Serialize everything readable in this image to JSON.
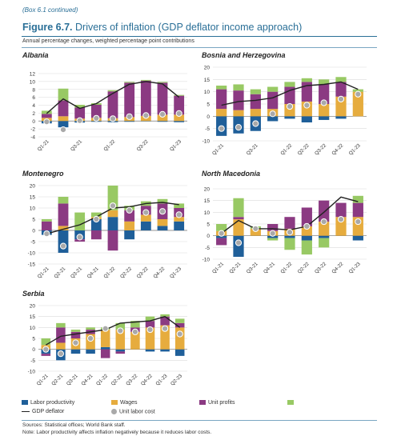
{
  "box_label": "(Box 6.1 continued)",
  "figure": {
    "number": "Figure 6.7.",
    "title": "Drivers of inflation (GDP deflator income approach)",
    "subtitle": "Annual percentage changes, weighted percentage point contributions"
  },
  "colors": {
    "labor_productivity": "#1f5f99",
    "wages": "#e6ac3e",
    "unit_profits": "#8b3a82",
    "unit_net_taxes": "#98c964",
    "gdp_deflator": "#222222",
    "unit_labor_cost": "#a9a9a9"
  },
  "legend": {
    "labor_productivity": "Labor productivity",
    "wages": "Wages",
    "unit_profits": "Unit profits",
    "unit_net_taxes": "Unit net takes",
    "gdp_deflator": "GDP deflator",
    "unit_labor_cost": "Unit labor cost"
  },
  "footer": {
    "sources": "Sources: Statistical offices; World Bank staff.",
    "note": "Note: Labor productivity affects inflation negatively because it reduces labor costs."
  },
  "chart_data": [
    {
      "type": "bar",
      "panel": "Albania",
      "categories": [
        "Q1-21",
        "Q2-21",
        "Q3-21",
        "Q4-21",
        "Q1-22",
        "Q2-22",
        "Q3-22",
        "Q4-22",
        "Q1-23"
      ],
      "tick_labels_shown": [
        "Q1-21",
        "",
        "Q3-21",
        "",
        "Q1-22",
        "",
        "Q3-22",
        "",
        "Q1-23"
      ],
      "ylim": [
        -4,
        12
      ],
      "yticks": [
        -4,
        -2,
        0,
        2,
        4,
        6,
        8,
        10,
        12
      ],
      "series": [
        {
          "name": "Labor productivity",
          "values": [
            -0.6,
            -1.6,
            -0.4,
            -0.2,
            -0.3,
            -0.2,
            -0.1,
            -0.2,
            -0.3
          ]
        },
        {
          "name": "Wages",
          "values": [
            0.8,
            1.2,
            0.6,
            0.8,
            0.7,
            1.0,
            1.3,
            1.6,
            1.6
          ]
        },
        {
          "name": "Unit profits",
          "values": [
            1.0,
            4.0,
            2.8,
            3.3,
            6.8,
            8.7,
            8.9,
            8.1,
            4.8
          ]
        },
        {
          "name": "Unit net takes",
          "values": [
            0.8,
            3.0,
            0.7,
            0.4,
            0.3,
            0.2,
            0.2,
            0.2,
            0.2
          ]
        }
      ],
      "gdp_deflator": [
        1.9,
        5.6,
        3.2,
        4.4,
        7.0,
        9.3,
        10.0,
        9.4,
        6.0
      ],
      "unit_labor_cost": [
        -0.2,
        -2.2,
        0.1,
        0.7,
        0.6,
        1.1,
        1.4,
        1.7,
        1.9
      ]
    },
    {
      "type": "bar",
      "panel": "Bosnia and Herzegovina",
      "categories": [
        "Q1-21",
        "Q2-21",
        "Q3-21",
        "Q4-21",
        "Q1-22",
        "Q2-22",
        "Q3-22",
        "Q4-22",
        "Q1-23"
      ],
      "tick_labels_shown": [
        "Q1-21",
        "",
        "Q3-21",
        "",
        "Q1-22",
        "Q2-22",
        "Q3-22",
        "Q4-22",
        "Q1-23"
      ],
      "ylim": [
        -10,
        20
      ],
      "yticks": [
        -10,
        -5,
        0,
        5,
        10,
        15,
        20
      ],
      "series": [
        {
          "name": "Labor productivity",
          "values": [
            -8.0,
            -7.0,
            -6.0,
            -2.0,
            -1.0,
            -2.5,
            -1.5,
            -1.0,
            0.0
          ]
        },
        {
          "name": "Wages",
          "values": [
            3.0,
            2.5,
            3.0,
            3.0,
            5.0,
            6.0,
            5.0,
            8.0,
            10.0
          ]
        },
        {
          "name": "Unit profits",
          "values": [
            8.0,
            8.0,
            6.0,
            7.0,
            7.0,
            8.0,
            8.0,
            6.0,
            0.0
          ]
        },
        {
          "name": "Unit net takes",
          "values": [
            1.5,
            2.5,
            2.0,
            2.0,
            2.0,
            1.5,
            2.0,
            2.0,
            1.0
          ]
        }
      ],
      "gdp_deflator": [
        4.5,
        6.0,
        6.5,
        7.5,
        10.5,
        12.5,
        13.0,
        14.0,
        11.0
      ],
      "unit_labor_cost": [
        -5.0,
        -4.5,
        -3.0,
        1.0,
        4.0,
        4.5,
        5.5,
        7.0,
        9.0
      ]
    },
    {
      "type": "bar",
      "panel": "Montenegro",
      "categories": [
        "Q1-21",
        "Q2-21",
        "Q3-21",
        "Q4-21",
        "Q1-22",
        "Q2-22",
        "Q3-22",
        "Q4-22",
        "Q1-23"
      ],
      "tick_labels_shown": [
        "Q1-21",
        "Q2-21",
        "Q3-21",
        "Q4-21",
        "Q1-22",
        "Q2-22",
        "Q3-22",
        "Q4-22",
        "Q1-23"
      ],
      "ylim": [
        -15,
        20
      ],
      "yticks": [
        -15,
        -10,
        -5,
        0,
        5,
        10,
        15,
        20
      ],
      "series": [
        {
          "name": "Labor productivity",
          "values": [
            -2.0,
            -10.0,
            -4.0,
            5.0,
            6.0,
            -4.0,
            4.0,
            2.0,
            4.0
          ]
        },
        {
          "name": "Wages",
          "values": [
            0.0,
            2.0,
            0.0,
            1.0,
            3.0,
            4.0,
            3.0,
            3.0,
            2.0
          ]
        },
        {
          "name": "Unit profits",
          "values": [
            4.0,
            10.0,
            -1.0,
            -4.0,
            -9.0,
            5.0,
            4.0,
            7.0,
            4.0
          ]
        },
        {
          "name": "Unit net takes",
          "values": [
            1.0,
            3.0,
            8.0,
            2.0,
            11.0,
            2.0,
            2.0,
            2.0,
            2.0
          ]
        }
      ],
      "gdp_deflator": [
        -1.5,
        0.5,
        2.5,
        6.0,
        10.0,
        10.5,
        12.0,
        12.5,
        11.5
      ],
      "unit_labor_cost": [
        -1.5,
        -7.0,
        -3.0,
        5.0,
        11.0,
        9.0,
        8.0,
        8.5,
        7.0
      ]
    },
    {
      "type": "bar",
      "panel": "North Macedonia",
      "categories": [
        "Q1-21",
        "Q2-21",
        "Q3-21",
        "Q4-21",
        "Q1-22",
        "Q2-22",
        "Q3-22",
        "Q4-22",
        "Q1-23"
      ],
      "tick_labels_shown": [
        "Q1-21",
        "Q2-21",
        "Q3-21",
        "Q4-21",
        "Q1-22",
        "Q2-22",
        "Q3-22",
        "Q4-22",
        "Q1-23"
      ],
      "ylim": [
        -10,
        20
      ],
      "yticks": [
        -10,
        -5,
        0,
        5,
        10,
        15,
        20
      ],
      "series": [
        {
          "name": "Labor productivity",
          "values": [
            -1.0,
            -9.0,
            0.0,
            -1.0,
            -1.0,
            -2.0,
            -1.0,
            0.0,
            -2.0
          ]
        },
        {
          "name": "Wages",
          "values": [
            2.0,
            7.0,
            3.0,
            2.0,
            3.0,
            4.0,
            6.0,
            8.0,
            8.0
          ]
        },
        {
          "name": "Unit profits",
          "values": [
            -3.0,
            1.0,
            0.0,
            3.0,
            5.0,
            8.0,
            9.0,
            6.0,
            6.0
          ]
        },
        {
          "name": "Unit net takes",
          "values": [
            3.0,
            8.0,
            1.0,
            -1.0,
            -5.0,
            -6.0,
            -4.0,
            0.0,
            3.0
          ]
        }
      ],
      "gdp_deflator": [
        1.0,
        6.5,
        3.0,
        3.0,
        2.5,
        4.0,
        10.0,
        16.5,
        14.5
      ],
      "unit_labor_cost": [
        1.0,
        -3.0,
        3.0,
        1.0,
        1.5,
        4.0,
        6.0,
        7.0,
        6.0
      ]
    },
    {
      "type": "bar",
      "panel": "Serbia",
      "categories": [
        "Q1-21",
        "Q2-21",
        "Q3-21",
        "Q4-21",
        "Q1-22",
        "Q2-22",
        "Q3-22",
        "Q4-22",
        "Q1-23",
        "Q2-23"
      ],
      "tick_labels_shown": [
        "Q1-21",
        "Q2-21",
        "Q3-21",
        "Q4-21",
        "Q1-22",
        "Q2-22",
        "Q3-22",
        "Q4-22",
        "Q1-23",
        "Q2-23"
      ],
      "ylim": [
        -10,
        20
      ],
      "yticks": [
        -10,
        -5,
        0,
        5,
        10,
        15,
        20
      ],
      "series": [
        {
          "name": "Labor productivity",
          "values": [
            -2.0,
            -5.0,
            -2.0,
            -2.0,
            1.0,
            -1.0,
            0.0,
            -1.0,
            -1.0,
            -3.0
          ]
        },
        {
          "name": "Wages",
          "values": [
            2.0,
            3.0,
            5.0,
            7.0,
            8.0,
            9.0,
            8.0,
            10.0,
            11.0,
            10.0
          ]
        },
        {
          "name": "Unit profits",
          "values": [
            -1.0,
            7.0,
            3.0,
            2.0,
            -4.0,
            -1.0,
            2.0,
            3.0,
            4.0,
            2.0
          ]
        },
        {
          "name": "Unit net takes",
          "values": [
            3.0,
            2.0,
            1.0,
            1.0,
            1.0,
            3.0,
            3.0,
            2.0,
            1.0,
            2.0
          ]
        }
      ],
      "gdp_deflator": [
        2.0,
        6.0,
        7.0,
        8.0,
        9.0,
        12.0,
        12.5,
        13.0,
        15.0,
        10.0
      ],
      "unit_labor_cost": [
        0.0,
        -2.0,
        3.0,
        5.0,
        9.5,
        8.5,
        8.0,
        9.0,
        9.5,
        7.0
      ]
    }
  ]
}
